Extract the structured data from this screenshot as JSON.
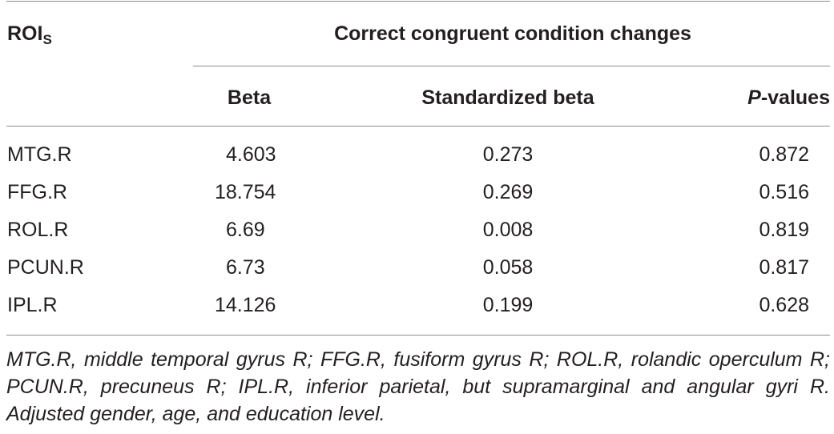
{
  "header": {
    "roi": "ROI",
    "roi_sub": "S",
    "group": "Correct congruent condition changes",
    "col_beta": "Beta",
    "col_std_beta": "Standardized beta",
    "col_p_italic": "P",
    "col_p_rest": "-values"
  },
  "rows": [
    {
      "roi": "MTG.R",
      "beta": "4.603",
      "std_beta": "0.273",
      "p": "0.872"
    },
    {
      "roi": "FFG.R",
      "beta": "18.754",
      "std_beta": "0.269",
      "p": "0.516"
    },
    {
      "roi": "ROL.R",
      "beta": "6.69",
      "std_beta": "0.008",
      "p": "0.819"
    },
    {
      "roi": "PCUN.R",
      "beta": "6.73",
      "std_beta": "0.058",
      "p": "0.817"
    },
    {
      "roi": "IPL.R",
      "beta": "14.126",
      "std_beta": "0.199",
      "p": "0.628"
    }
  ],
  "footnote": "MTG.R, middle temporal gyrus R; FFG.R, fusiform gyrus R; ROL.R, rolandic operculum R; PCUN.R, precuneus R; IPL.R, inferior parietal, but supramarginal and angular gyri R. Adjusted gender, age, and education level."
}
